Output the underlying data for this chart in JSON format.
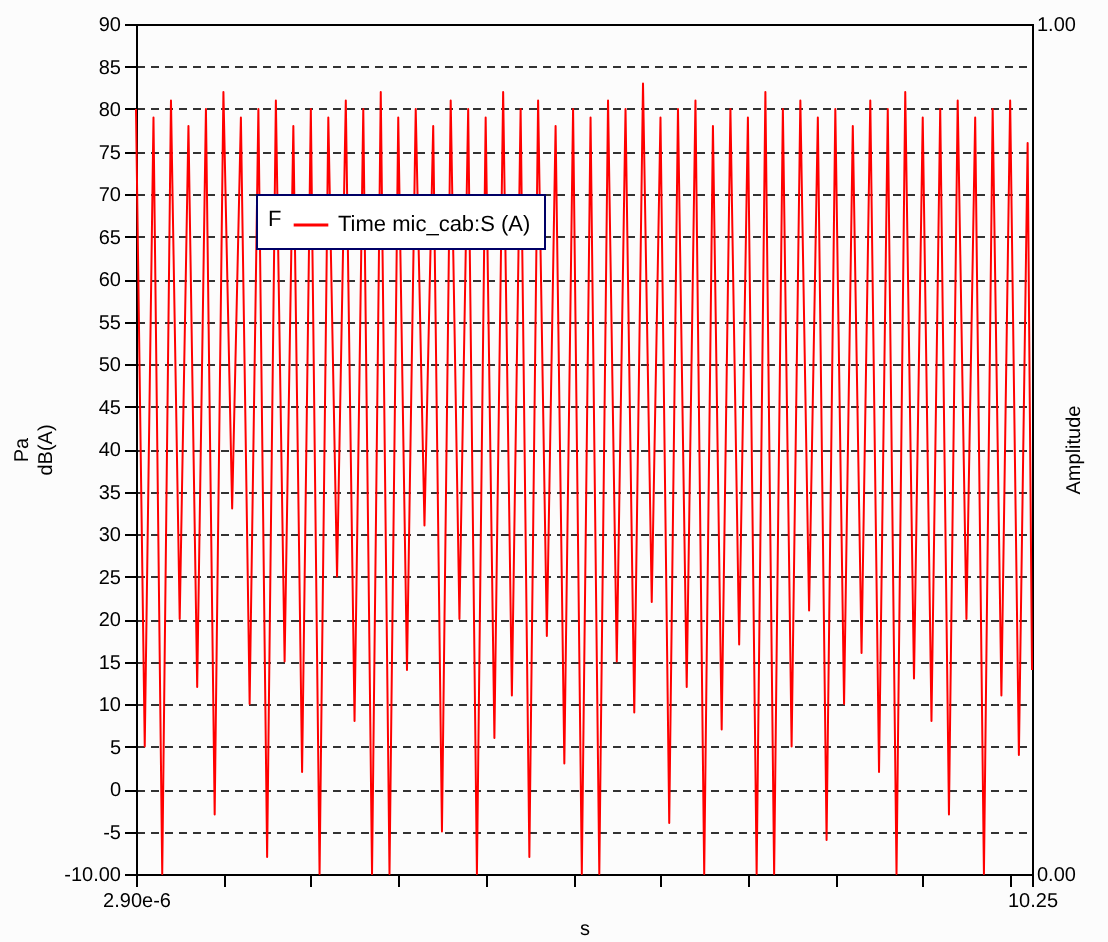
{
  "chart_data": {
    "type": "line",
    "xlabel": "s",
    "ylabel": "Pa\ndB(A)",
    "y2label": "Amplitude",
    "legend_title": "F",
    "xlim": [
      2.9e-06,
      10.25
    ],
    "xticks": [
      {
        "value": 2.9e-06,
        "label": "2.90e-6"
      },
      {
        "value": 1,
        "label": null
      },
      {
        "value": 2,
        "label": null
      },
      {
        "value": 3,
        "label": null
      },
      {
        "value": 4,
        "label": null
      },
      {
        "value": 5,
        "label": null
      },
      {
        "value": 6,
        "label": null
      },
      {
        "value": 7,
        "label": null
      },
      {
        "value": 8,
        "label": null
      },
      {
        "value": 9,
        "label": null
      },
      {
        "value": 10,
        "label": null
      },
      {
        "value": 10.25,
        "label": "10.25"
      }
    ],
    "ylim": [
      -10,
      90
    ],
    "yticks": [
      {
        "value": -10,
        "label": "-10.00"
      },
      -5,
      0,
      5,
      10,
      15,
      20,
      25,
      30,
      35,
      40,
      45,
      50,
      55,
      60,
      65,
      70,
      75,
      80,
      85,
      90
    ],
    "y2lim": [
      0,
      1
    ],
    "y2ticks": [
      {
        "value": 0,
        "label": "0.00"
      },
      {
        "value": 1,
        "label": "1.00"
      }
    ],
    "grid": "y",
    "legend": "top left",
    "series": [
      {
        "name": "Time mic_cab:S (A)",
        "color": "#ff0000",
        "line_style": "solid",
        "x": [
          2.9e-06,
          0.1,
          0.2,
          0.3,
          0.4,
          0.5,
          0.6,
          0.7,
          0.8,
          0.9,
          1.0,
          1.1,
          1.2,
          1.3,
          1.4,
          1.5,
          1.6,
          1.7,
          1.8,
          1.9,
          2.0,
          2.1,
          2.2,
          2.3,
          2.4,
          2.5,
          2.6,
          2.7,
          2.8,
          2.9,
          3.0,
          3.1,
          3.2,
          3.3,
          3.4,
          3.5,
          3.6,
          3.7,
          3.8,
          3.9,
          4.0,
          4.1,
          4.2,
          4.3,
          4.4,
          4.5,
          4.6,
          4.7,
          4.8,
          4.9,
          5.0,
          5.1,
          5.2,
          5.3,
          5.4,
          5.5,
          5.6,
          5.7,
          5.8,
          5.9,
          6.0,
          6.1,
          6.2,
          6.3,
          6.4,
          6.5,
          6.6,
          6.7,
          6.8,
          6.9,
          7.0,
          7.1,
          7.2,
          7.3,
          7.4,
          7.5,
          7.6,
          7.7,
          7.8,
          7.9,
          8.0,
          8.1,
          8.2,
          8.3,
          8.4,
          8.5,
          8.6,
          8.7,
          8.8,
          8.9,
          9.0,
          9.1,
          9.2,
          9.3,
          9.4,
          9.5,
          9.6,
          9.7,
          9.8,
          9.9,
          10.0,
          10.1,
          10.2,
          10.25
        ],
        "values": [
          80,
          5,
          79,
          -10,
          81,
          20,
          78,
          12,
          80,
          -3,
          82,
          33,
          79,
          10,
          80,
          -8,
          81,
          15,
          78,
          2,
          80,
          -10,
          79,
          25,
          81,
          8,
          80,
          -10,
          82,
          -10,
          79,
          14,
          80,
          31,
          78,
          -5,
          81,
          20,
          80,
          -10,
          79,
          6,
          82,
          11,
          80,
          -8,
          81,
          18,
          78,
          3,
          80,
          -10,
          79,
          -10,
          81,
          15,
          80,
          9,
          83,
          22,
          79,
          -4,
          80,
          12,
          81,
          -10,
          78,
          7,
          80,
          17,
          79,
          -10,
          82,
          -10,
          80,
          5,
          81,
          21,
          79,
          -6,
          80,
          10,
          78,
          16,
          81,
          2,
          80,
          -10,
          82,
          13,
          79,
          8,
          80,
          -3,
          81,
          20,
          79,
          -10,
          80,
          11,
          81,
          4,
          76,
          14
        ]
      }
    ]
  }
}
